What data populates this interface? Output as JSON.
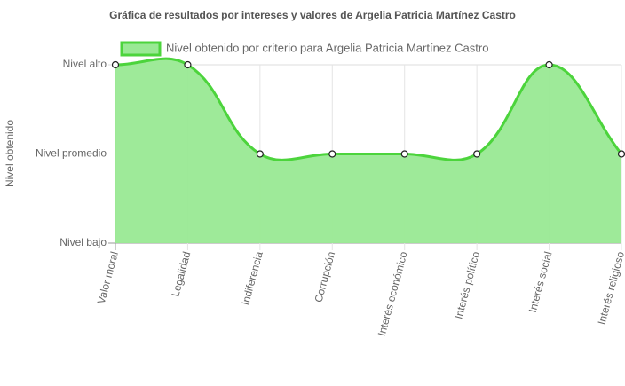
{
  "chart_data": {
    "type": "area",
    "title": "Gráfica de resultados por intereses y valores de Argelia Patricia Martínez Castro",
    "y_label": "Nivel obtenido",
    "categories": [
      "Valor moral",
      "Legalidad",
      "Indiferencia",
      "Corrupción",
      "Interés económico",
      "Interés político",
      "Interés social",
      "Interés religioso"
    ],
    "series": [
      {
        "name": "Nivel obtenido por criterio para Argelia Patricia Martínez Castro",
        "color": "#4cd43c",
        "fill": "#99e994",
        "values": [
          3,
          3,
          2,
          2,
          2,
          2,
          3,
          2
        ]
      }
    ],
    "ylim": [
      1,
      3
    ],
    "yticks": [
      {
        "value": 1,
        "label": "Nivel bajo"
      },
      {
        "value": 2,
        "label": "Nivel promedio"
      },
      {
        "value": 3,
        "label": "Nivel alto"
      }
    ],
    "grid": true,
    "legend": "top"
  }
}
